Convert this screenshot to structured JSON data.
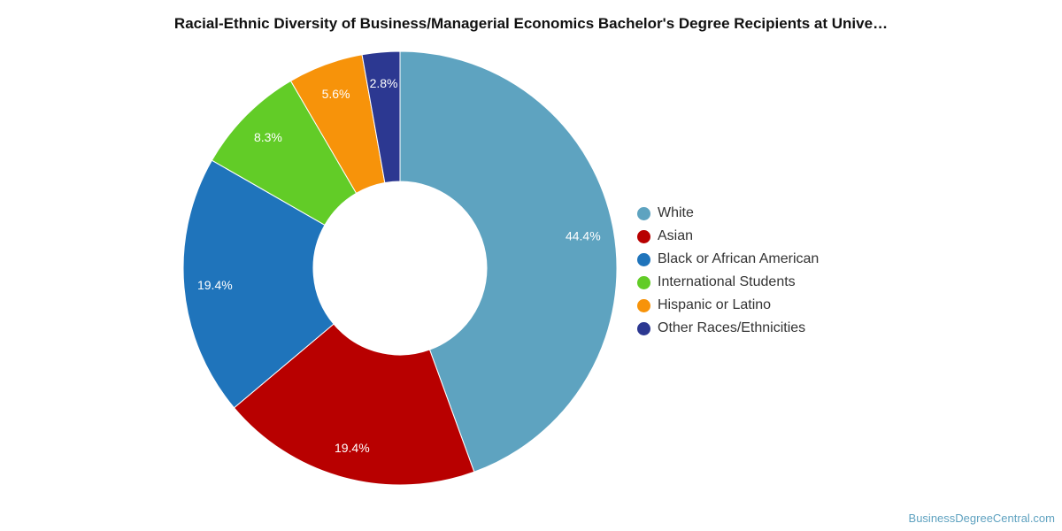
{
  "chart_data": {
    "type": "pie",
    "donut": true,
    "title": "Racial-Ethnic Diversity of Business/Managerial Economics Bachelor's Degree Recipients at Unive…",
    "categories": [
      "White",
      "Asian",
      "Black or African American",
      "International Students",
      "Hispanic or Latino",
      "Other Races/Ethnicities"
    ],
    "values": [
      44.4,
      19.4,
      19.4,
      8.3,
      5.6,
      2.8
    ],
    "labels": [
      "44.4%",
      "19.4%",
      "19.4%",
      "8.3%",
      "5.6%",
      "2.8%"
    ],
    "colors": [
      "#5ea3c0",
      "#b80000",
      "#1f74bb",
      "#62cc27",
      "#f7930a",
      "#2c3891"
    ],
    "legend_position": "right"
  },
  "credit": "BusinessDegreeCentral.com"
}
